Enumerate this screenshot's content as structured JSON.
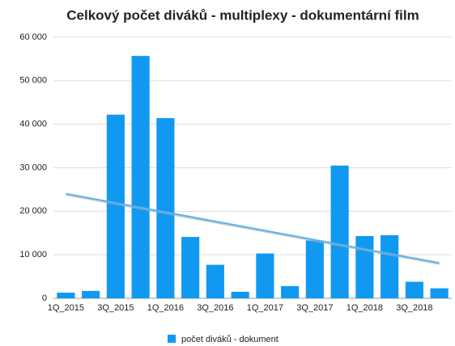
{
  "chart_data": {
    "type": "bar",
    "title": "Celkový počet diváků - multiplexy - dokumentární film",
    "categories": [
      "1Q_2015",
      null,
      "3Q_2015",
      null,
      "1Q_2016",
      null,
      "3Q_2016",
      null,
      "1Q_2017",
      null,
      "3Q_2017",
      null,
      "1Q_2018",
      null,
      "3Q_2018",
      null
    ],
    "series": [
      {
        "name": "počet diváků - dokument",
        "color": "#1199f2",
        "values": [
          1300,
          1700,
          42200,
          55700,
          41400,
          14100,
          7700,
          1500,
          10300,
          2800,
          13300,
          30500,
          14300,
          14500,
          3800,
          2300
        ]
      }
    ],
    "ylim": [
      0,
      60000
    ],
    "yticks": [
      0,
      {
        "value": 10000,
        "label": "10 000"
      },
      {
        "value": 20000,
        "label": "20 000"
      },
      {
        "value": 30000,
        "label": "30 000"
      },
      {
        "value": 40000,
        "label": "40 000"
      },
      {
        "value": 50000,
        "label": "50 000"
      },
      {
        "value": 60000,
        "label": "60 000"
      }
    ],
    "grid": true,
    "trendline": true,
    "legend": "bottom"
  }
}
